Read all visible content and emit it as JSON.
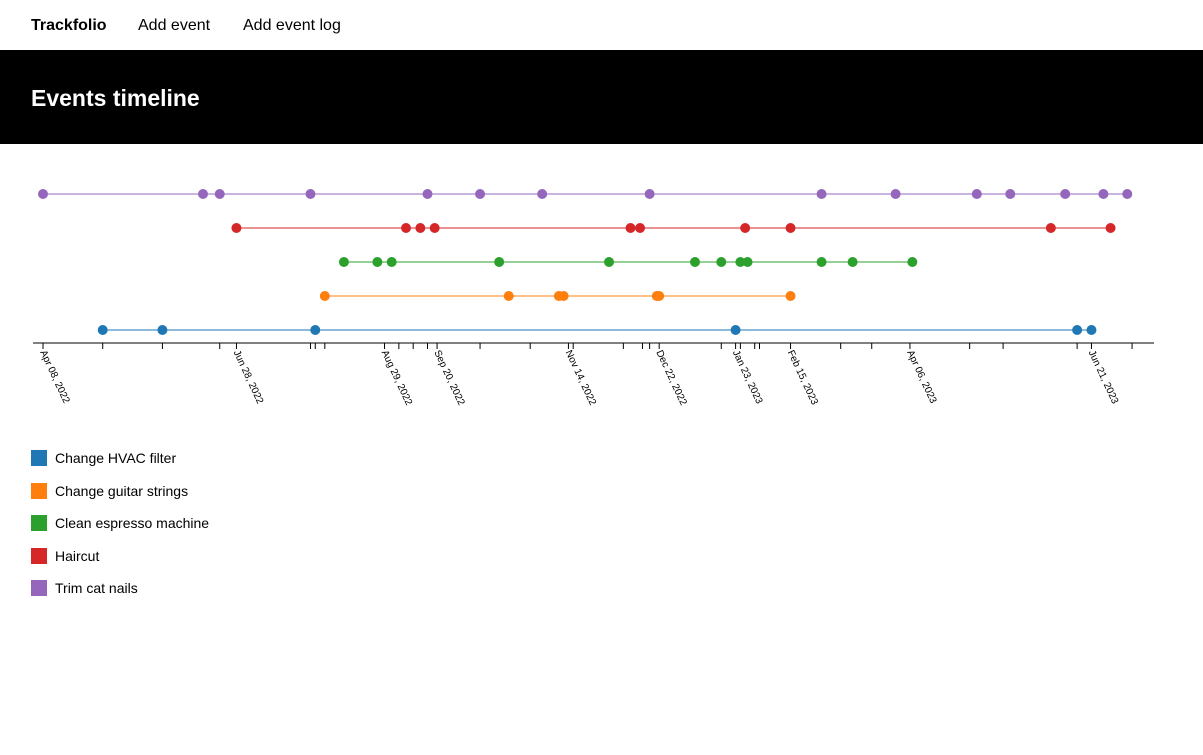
{
  "nav": {
    "brand": "Trackfolio",
    "items": [
      "Add event",
      "Add event log"
    ]
  },
  "page": {
    "title": "Events timeline"
  },
  "colors": {
    "axis": "#000000",
    "header_bg": "#000000"
  },
  "chart_data": {
    "type": "scatter",
    "title": "",
    "xlabel": "",
    "ylabel": "",
    "x_axis": "date",
    "xlim": [
      "2022-04-08",
      "2023-07-13"
    ],
    "tick_labels": [
      "Apr 08, 2022",
      "Jun 28, 2022",
      "Aug 29, 2022",
      "Sep 20, 2022",
      "Nov 14, 2022",
      "Dec 22, 2022",
      "Jan 23, 2023",
      "Feb 15, 2023",
      "Apr 06, 2023",
      "Jun 21, 2023"
    ],
    "tick_dates": [
      "2022-04-08",
      "2022-06-28",
      "2022-08-29",
      "2022-09-20",
      "2022-11-14",
      "2022-12-22",
      "2023-01-23",
      "2023-02-15",
      "2023-04-06",
      "2023-06-21"
    ],
    "minor_tick_dates": [
      "2022-05-03",
      "2022-05-28",
      "2022-06-21",
      "2022-07-29",
      "2022-07-31",
      "2022-08-04",
      "2022-09-04",
      "2022-09-10",
      "2022-09-16",
      "2022-10-08",
      "2022-10-29",
      "2022-11-16",
      "2022-12-07",
      "2022-12-15",
      "2022-12-18",
      "2023-01-17",
      "2023-01-25",
      "2023-01-31",
      "2023-02-02",
      "2023-03-08",
      "2023-03-21",
      "2023-05-01",
      "2023-05-15",
      "2023-06-15",
      "2023-07-08"
    ],
    "legend_position": "bottom-left",
    "series": [
      {
        "name": "Change HVAC filter",
        "color": "#1f77b4",
        "dates": [
          "2022-05-03",
          "2022-05-28",
          "2022-07-31",
          "2023-01-23",
          "2023-06-15",
          "2023-06-21"
        ]
      },
      {
        "name": "Change guitar strings",
        "color": "#ff7f0e",
        "dates": [
          "2022-08-04",
          "2022-10-20",
          "2022-11-10",
          "2022-11-12",
          "2022-12-21",
          "2022-12-22",
          "2023-02-15"
        ]
      },
      {
        "name": "Clean espresso machine",
        "color": "#2ca02c",
        "dates": [
          "2022-08-12",
          "2022-08-26",
          "2022-09-01",
          "2022-10-16",
          "2022-12-01",
          "2023-01-06",
          "2023-01-17",
          "2023-01-25",
          "2023-01-28",
          "2023-02-28",
          "2023-03-13",
          "2023-04-07"
        ]
      },
      {
        "name": "Haircut",
        "color": "#d62728",
        "dates": [
          "2022-06-28",
          "2022-09-07",
          "2022-09-13",
          "2022-09-19",
          "2022-12-10",
          "2022-12-14",
          "2023-01-27",
          "2023-02-15",
          "2023-06-04",
          "2023-06-29"
        ]
      },
      {
        "name": "Trim cat nails",
        "color": "#9467bd",
        "dates": [
          "2022-04-08",
          "2022-06-14",
          "2022-06-21",
          "2022-07-29",
          "2022-09-16",
          "2022-10-08",
          "2022-11-03",
          "2022-12-18",
          "2023-02-28",
          "2023-03-31",
          "2023-05-04",
          "2023-05-18",
          "2023-06-10",
          "2023-06-26",
          "2023-07-06"
        ]
      }
    ]
  }
}
